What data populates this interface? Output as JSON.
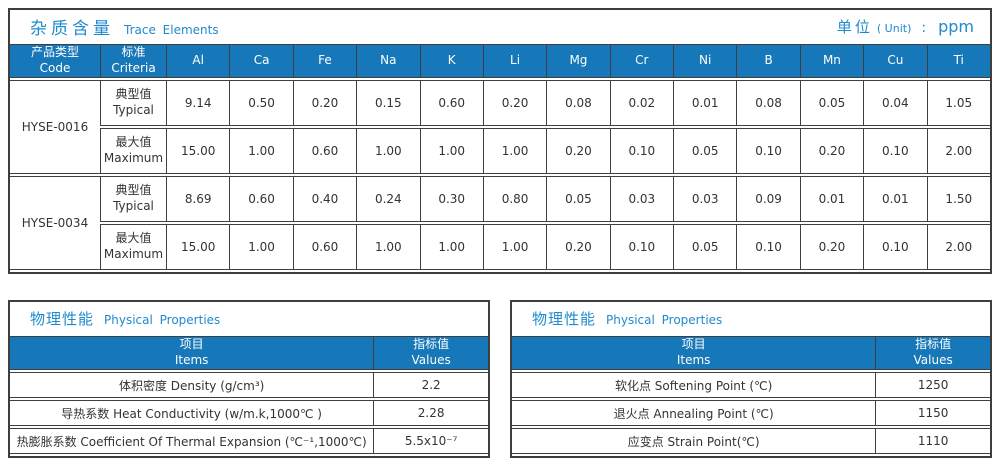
{
  "colors": {
    "header_fill_blue": "#1677b9",
    "title_text_blue": "#1f8ace",
    "border_dark": "#3f3f3f",
    "cell_text": "#333333"
  },
  "trace_table": {
    "title_zh": "杂质含量",
    "title_en": "Trace Elements",
    "unit_zh": "单位",
    "unit_paren": "( Unit)",
    "unit_colon": ":",
    "unit_value": "ppm",
    "col1": {
      "zh": "产品类型",
      "en": "Code"
    },
    "col2": {
      "zh": "标准",
      "en": "Criteria"
    },
    "elements": [
      "Al",
      "Ca",
      "Fe",
      "Na",
      "K",
      "Li",
      "Mg",
      "Cr",
      "Ni",
      "B",
      "Mn",
      "Cu",
      "Ti"
    ],
    "groups": [
      {
        "code": "HYSE-0016",
        "rows": [
          {
            "label_zh": "典型值",
            "label_en": "Typical",
            "values": [
              "9.14",
              "0.50",
              "0.20",
              "0.15",
              "0.60",
              "0.20",
              "0.08",
              "0.02",
              "0.01",
              "0.08",
              "0.05",
              "0.04",
              "1.05"
            ]
          },
          {
            "label_zh": "最大值",
            "label_en": "Maximum",
            "values": [
              "15.00",
              "1.00",
              "0.60",
              "1.00",
              "1.00",
              "1.00",
              "0.20",
              "0.10",
              "0.05",
              "0.10",
              "0.20",
              "0.10",
              "2.00"
            ]
          }
        ]
      },
      {
        "code": "HYSE-0034",
        "rows": [
          {
            "label_zh": "典型值",
            "label_en": "Typical",
            "values": [
              "8.69",
              "0.60",
              "0.40",
              "0.24",
              "0.30",
              "0.80",
              "0.05",
              "0.03",
              "0.03",
              "0.09",
              "0.01",
              "0.01",
              "1.50"
            ]
          },
          {
            "label_zh": "最大值",
            "label_en": "Maximum",
            "values": [
              "15.00",
              "1.00",
              "0.60",
              "1.00",
              "1.00",
              "1.00",
              "0.20",
              "0.10",
              "0.05",
              "0.10",
              "0.20",
              "0.10",
              "2.00"
            ]
          }
        ]
      }
    ]
  },
  "physical_left": {
    "title_zh": "物理性能",
    "title_en": "Physical Properties",
    "col_items": {
      "zh": "项目",
      "en": "Items"
    },
    "col_values": {
      "zh": "指标值",
      "en": "Values"
    },
    "rows": [
      {
        "item": "体积密度 Density (g/cm³)",
        "value": "2.2"
      },
      {
        "item": "导热系数 Heat Conductivity (w/m.k,1000℃ )",
        "value": "2.28"
      },
      {
        "item": "热膨胀系数 Coefficient Of Thermal Expansion (℃⁻¹,1000℃)",
        "value": "5.5x10⁻⁷"
      }
    ]
  },
  "physical_right": {
    "title_zh": "物理性能",
    "title_en": "Physical Properties",
    "col_items": {
      "zh": "项目",
      "en": "Items"
    },
    "col_values": {
      "zh": "指标值",
      "en": "Values"
    },
    "rows": [
      {
        "item": "软化点 Softening Point (℃)",
        "value": "1250"
      },
      {
        "item": "退火点 Annealing Point (℃)",
        "value": "1150"
      },
      {
        "item": "应变点 Strain Point(℃)",
        "value": "1110"
      }
    ]
  }
}
